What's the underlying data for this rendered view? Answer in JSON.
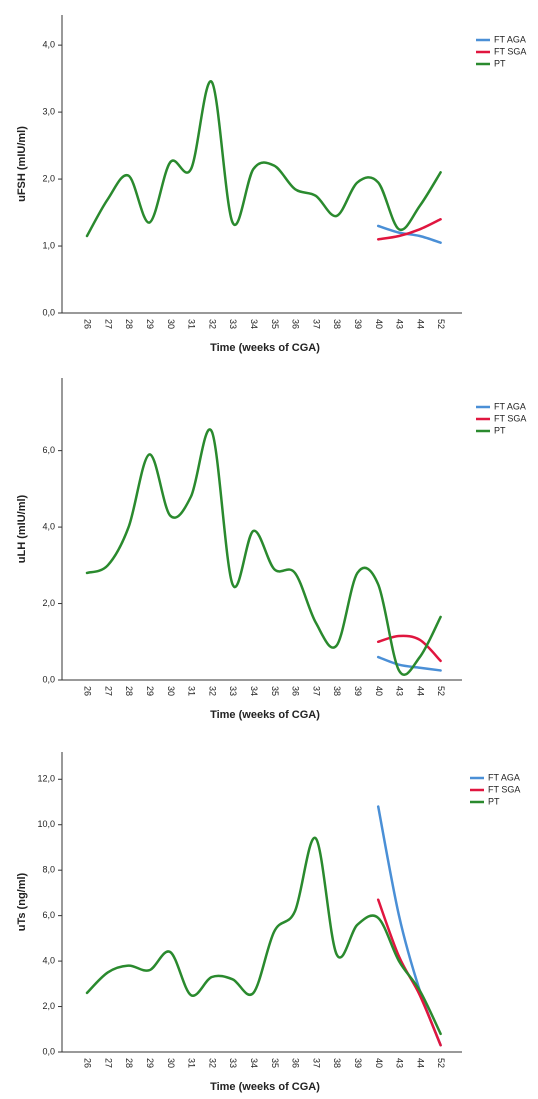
{
  "chart_data": [
    {
      "type": "line",
      "y_label": "uFSH (mIU/ml)",
      "x_label": "Time (weeks of CGA)",
      "categories": [
        "26",
        "27",
        "28",
        "29",
        "30",
        "31",
        "32",
        "33",
        "34",
        "35",
        "36",
        "37",
        "38",
        "39",
        "40",
        "43",
        "44",
        "52"
      ],
      "series": [
        {
          "name": "FT AGA",
          "color": "#4a8fd6",
          "values": [
            null,
            null,
            null,
            null,
            null,
            null,
            null,
            null,
            null,
            null,
            null,
            null,
            null,
            null,
            1.3,
            1.2,
            1.15,
            1.05
          ]
        },
        {
          "name": "FT SGA",
          "color": "#e0163f",
          "values": [
            null,
            null,
            null,
            null,
            null,
            null,
            null,
            null,
            null,
            null,
            null,
            null,
            null,
            null,
            1.1,
            1.15,
            1.25,
            1.4
          ]
        },
        {
          "name": "PT",
          "color": "#2a8a2e",
          "values": [
            1.15,
            1.7,
            2.05,
            1.35,
            2.25,
            2.15,
            3.45,
            1.35,
            2.15,
            2.2,
            1.85,
            1.75,
            1.45,
            1.95,
            1.95,
            1.25,
            1.6,
            2.1
          ]
        }
      ],
      "ylim": [
        0,
        4.45
      ],
      "yticks": [
        {
          "value": 0,
          "label": "0,0"
        },
        {
          "value": 1,
          "label": "1,0"
        },
        {
          "value": 2,
          "label": "2,0"
        },
        {
          "value": 3,
          "label": "3,0"
        },
        {
          "value": 4,
          "label": "4,0"
        }
      ],
      "legend": "upper right"
    },
    {
      "type": "line",
      "y_label": "uLH (mIU/ml)",
      "x_label": "Time (weeks of CGA)",
      "categories": [
        "26",
        "27",
        "28",
        "29",
        "30",
        "31",
        "32",
        "33",
        "34",
        "35",
        "36",
        "37",
        "38",
        "39",
        "40",
        "43",
        "44",
        "52"
      ],
      "series": [
        {
          "name": "FT AGA",
          "color": "#4a8fd6",
          "values": [
            null,
            null,
            null,
            null,
            null,
            null,
            null,
            null,
            null,
            null,
            null,
            null,
            null,
            null,
            0.6,
            0.4,
            0.32,
            0.25
          ]
        },
        {
          "name": "FT SGA",
          "color": "#e0163f",
          "values": [
            null,
            null,
            null,
            null,
            null,
            null,
            null,
            null,
            null,
            null,
            null,
            null,
            null,
            null,
            1.0,
            1.15,
            1.05,
            0.5
          ]
        },
        {
          "name": "PT",
          "color": "#2a8a2e",
          "values": [
            2.8,
            3.0,
            4.0,
            5.9,
            4.3,
            4.8,
            6.5,
            2.5,
            3.9,
            2.9,
            2.8,
            1.5,
            0.9,
            2.8,
            2.5,
            0.25,
            0.6,
            1.65
          ]
        }
      ],
      "ylim": [
        0,
        7.9
      ],
      "yticks": [
        {
          "value": 0,
          "label": "0,0"
        },
        {
          "value": 2,
          "label": "2,0"
        },
        {
          "value": 4,
          "label": "4,0"
        },
        {
          "value": 6,
          "label": "6,0"
        }
      ],
      "legend": "upper right"
    },
    {
      "type": "line",
      "y_label": "uTs (ng/ml)",
      "x_label": "Time (weeks of CGA)",
      "categories": [
        "26",
        "27",
        "28",
        "29",
        "30",
        "31",
        "32",
        "33",
        "34",
        "35",
        "36",
        "37",
        "38",
        "39",
        "40",
        "43",
        "44",
        "52"
      ],
      "series": [
        {
          "name": "FT AGA",
          "color": "#4a8fd6",
          "values": [
            null,
            null,
            null,
            null,
            null,
            null,
            null,
            null,
            null,
            null,
            null,
            null,
            null,
            null,
            10.8,
            6.0,
            2.7,
            0.3
          ]
        },
        {
          "name": "FT SGA",
          "color": "#e0163f",
          "values": [
            null,
            null,
            null,
            null,
            null,
            null,
            null,
            null,
            null,
            null,
            null,
            null,
            null,
            null,
            6.7,
            4.2,
            2.5,
            0.3
          ]
        },
        {
          "name": "PT",
          "color": "#2a8a2e",
          "values": [
            2.6,
            3.5,
            3.8,
            3.6,
            4.4,
            2.5,
            3.3,
            3.2,
            2.6,
            5.3,
            6.2,
            9.4,
            4.3,
            5.6,
            5.9,
            4.0,
            2.7,
            0.8
          ]
        }
      ],
      "ylim": [
        0,
        13.2
      ],
      "yticks": [
        {
          "value": 0,
          "label": "0,0"
        },
        {
          "value": 2,
          "label": "2,0"
        },
        {
          "value": 4,
          "label": "4,0"
        },
        {
          "value": 6,
          "label": "6,0"
        },
        {
          "value": 8,
          "label": "8,0"
        },
        {
          "value": 10,
          "label": "10,0"
        },
        {
          "value": 12,
          "label": "12,0"
        }
      ],
      "legend": "upper right"
    }
  ]
}
